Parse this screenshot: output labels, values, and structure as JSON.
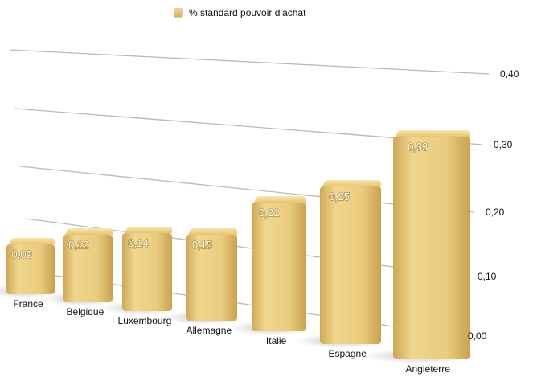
{
  "legend": {
    "label": "% standard pouvoir d’achat"
  },
  "colors": {
    "bar_light": "#f4dc97",
    "bar_mid": "#e8c878",
    "bar_dark": "#cda653",
    "gridline": "#b9b9b9"
  },
  "chart_data": {
    "type": "bar",
    "categories": [
      "France",
      "Belgique",
      "Luxembourg",
      "Allemagne",
      "Italie",
      "Espagne",
      "Angleterre"
    ],
    "series": [
      {
        "name": "% standard pouvoir d’achat",
        "values": [
          0.09,
          0.12,
          0.14,
          0.15,
          0.21,
          0.25,
          0.33
        ],
        "labels": [
          "0,09",
          "0,12",
          "0,14",
          "0,15",
          "0,21",
          "0,25",
          "0,33"
        ]
      }
    ],
    "yticks": [
      0,
      0.1,
      0.2,
      0.3,
      0.4
    ],
    "ytick_labels": [
      "0,00",
      "0,10",
      "0,20",
      "0,30",
      "0,40"
    ],
    "ylim": [
      0,
      0.4
    ],
    "grid": true,
    "legend_position": "top",
    "style": "3d-perspective"
  }
}
